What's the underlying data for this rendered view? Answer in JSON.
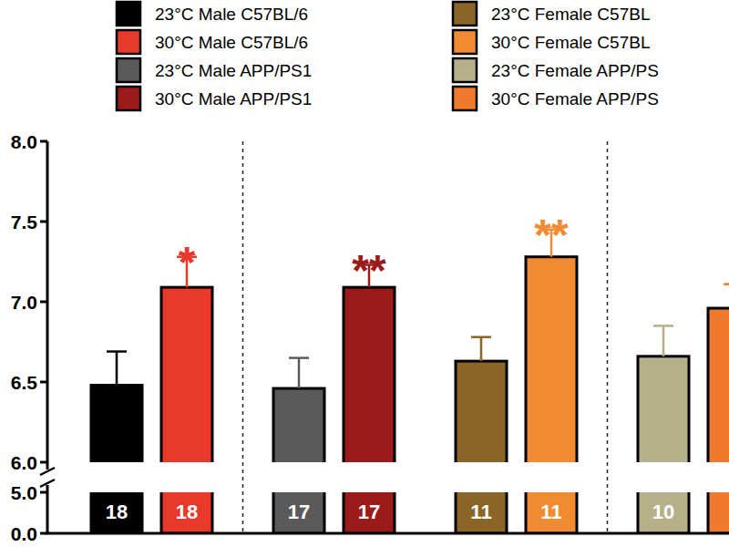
{
  "chart_data": {
    "type": "bar",
    "categories": [
      null
    ],
    "ylim": [
      0,
      8.0
    ],
    "yticks": [
      {
        "value": 0,
        "label": "0.0"
      },
      {
        "value": 5,
        "label": "5.0"
      },
      {
        "value": 6,
        "label": "6.0"
      },
      {
        "value": 6.5,
        "label": "6.5"
      },
      {
        "value": 7,
        "label": "7.0"
      },
      {
        "value": 7.5,
        "label": "7.5"
      },
      {
        "value": 8,
        "label": "8.0"
      }
    ],
    "grid": false,
    "legend": "top",
    "series": [
      {
        "name": "23°C Male C57BL/6",
        "color": "#000000",
        "values": [
          6.48
        ],
        "errors": [
          0.21
        ],
        "n": [
          18
        ],
        "significance": [
          null
        ]
      },
      {
        "name": "30°C Male C57BL/6",
        "color": "#e8392b",
        "values": [
          7.09
        ],
        "errors": [
          0.19
        ],
        "n": [
          18
        ],
        "significance": [
          "*"
        ]
      },
      {
        "name": "23°C Male APP/PS1",
        "color": "#5a5a5a",
        "values": [
          6.46
        ],
        "errors": [
          0.19
        ],
        "n": [
          17
        ],
        "significance": [
          null
        ]
      },
      {
        "name": "30°C Male APP/PS1",
        "color": "#9b1b1b",
        "values": [
          7.09
        ],
        "errors": [
          0.14
        ],
        "n": [
          17
        ],
        "significance": [
          "**"
        ]
      },
      {
        "name": "23°C Female C57BL",
        "color": "#8b6528",
        "values": [
          6.63
        ],
        "errors": [
          0.15
        ],
        "n": [
          11
        ],
        "significance": [
          null
        ]
      },
      {
        "name": "30°C Female C57BL",
        "color": "#f08a33",
        "values": [
          7.28
        ],
        "errors": [
          0.17
        ],
        "n": [
          11
        ],
        "significance": [
          "**"
        ]
      },
      {
        "name": "23°C Female APP/PS",
        "color": "#b5b08a",
        "values": [
          6.66
        ],
        "errors": [
          0.19
        ],
        "n": [
          10
        ],
        "significance": [
          null
        ]
      },
      {
        "name": "30°C Female APP/PS",
        "color": "#ef7a2e",
        "values": [
          6.96
        ],
        "errors": [
          0.15
        ],
        "n": [
          null
        ],
        "significance": [
          null
        ]
      }
    ]
  }
}
